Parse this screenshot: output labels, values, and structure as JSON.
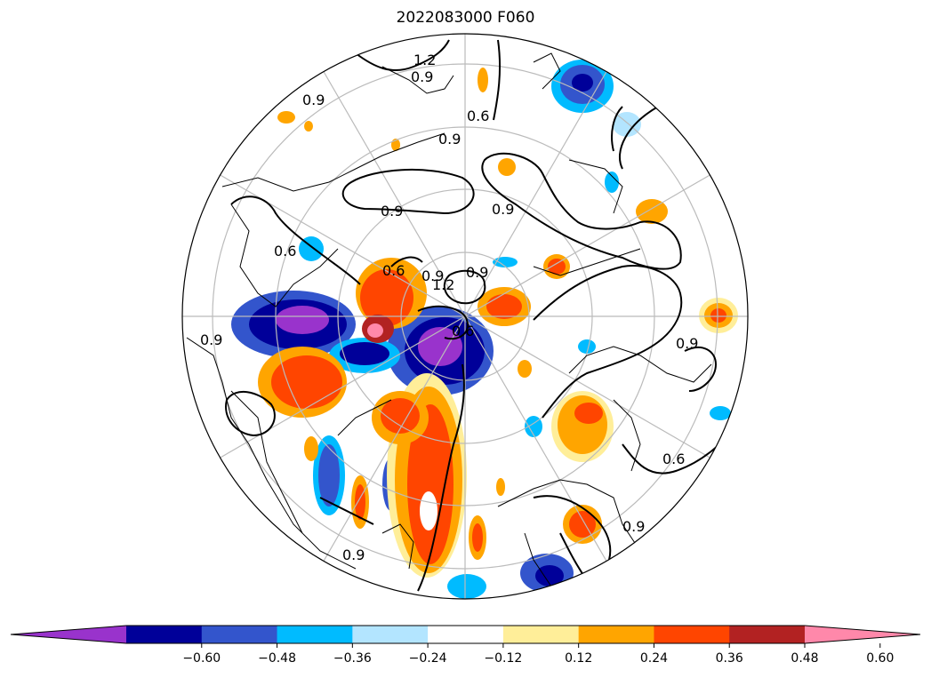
{
  "title": "2022083000 F060",
  "colorbar": {
    "extend": "both",
    "colors": [
      "#9933cc",
      "#000099",
      "#3355cc",
      "#00bbff",
      "#b3e5ff",
      "#ffffff",
      "#ffee99",
      "#ffa500",
      "#ff4500",
      "#b22222",
      "#ff88aa"
    ],
    "tick_labels": [
      "−0.60",
      "−0.48",
      "−0.36",
      "−0.24",
      "−0.12",
      "0.12",
      "0.24",
      "0.36",
      "0.48",
      "0.60"
    ]
  },
  "contour_labels": [
    {
      "text": "1.2"
    },
    {
      "text": "0.9"
    },
    {
      "text": "0.9"
    },
    {
      "text": "0.6"
    },
    {
      "text": "0.9"
    },
    {
      "text": "0.9"
    },
    {
      "text": "0.6"
    },
    {
      "text": "1.2"
    },
    {
      "text": "0.9"
    },
    {
      "text": "0.6"
    },
    {
      "text": "0.9"
    },
    {
      "text": "0.9"
    },
    {
      "text": "0.6"
    },
    {
      "text": "0.9"
    },
    {
      "text": "0.9"
    },
    {
      "text": "0.9"
    },
    {
      "text": "0.6"
    },
    {
      "text": "0.9"
    }
  ]
}
